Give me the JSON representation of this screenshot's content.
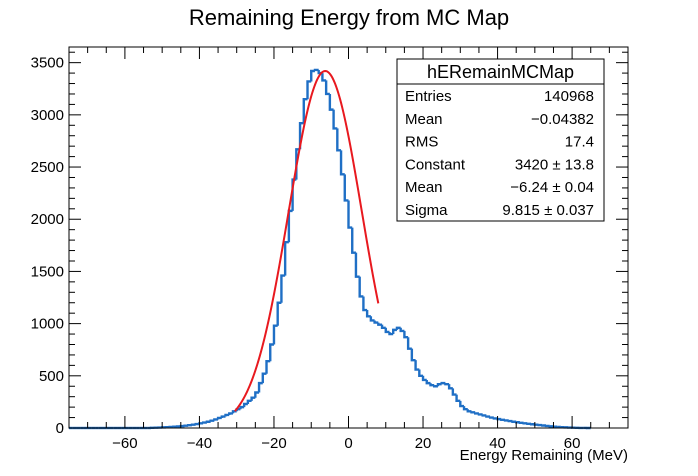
{
  "chart_data": {
    "type": "histogram",
    "title": "Remaining Energy from MC Map",
    "xlabel": "Energy Remaining (MeV)",
    "ylabel": "",
    "xlim": [
      -75,
      75
    ],
    "ylim": [
      0,
      3650
    ],
    "x_ticks": [
      -60,
      -40,
      -20,
      0,
      20,
      40,
      60
    ],
    "x_tick_labels": [
      "−60",
      "−40",
      "−20",
      "0",
      "20",
      "40",
      "60"
    ],
    "y_ticks": [
      0,
      500,
      1000,
      1500,
      2000,
      2500,
      3000,
      3500
    ],
    "y_tick_labels": [
      "0",
      "500",
      "1000",
      "1500",
      "2000",
      "2500",
      "3000",
      "3500"
    ],
    "grid": false,
    "colors": {
      "histogram": "#1f6fc5",
      "fit": "#e8191f",
      "frame": "#000000"
    },
    "histogram": {
      "name": "hERemainMCMap",
      "bin_width": 1,
      "x_start": -75,
      "values": [
        0,
        0,
        0,
        0,
        0,
        0,
        0,
        0,
        0,
        0,
        0,
        0,
        0,
        0,
        0,
        0,
        0,
        0,
        0,
        0,
        0,
        0,
        2,
        3,
        4,
        6,
        8,
        10,
        12,
        15,
        18,
        22,
        27,
        32,
        38,
        45,
        52,
        60,
        70,
        82,
        96,
        110,
        125,
        140,
        160,
        180,
        200,
        230,
        260,
        290,
        340,
        430,
        520,
        640,
        800,
        980,
        1200,
        1460,
        1780,
        2080,
        2380,
        2670,
        2920,
        3150,
        3320,
        3420,
        3430,
        3400,
        3330,
        3200,
        3050,
        2870,
        2660,
        2430,
        2180,
        1920,
        1680,
        1450,
        1260,
        1130,
        1070,
        1030,
        1010,
        990,
        960,
        920,
        900,
        940,
        960,
        930,
        870,
        760,
        650,
        560,
        500,
        460,
        430,
        410,
        400,
        420,
        430,
        420,
        380,
        320,
        260,
        210,
        180,
        160,
        150,
        140,
        130,
        120,
        110,
        100,
        92,
        85,
        78,
        72,
        66,
        60,
        55,
        50,
        45,
        40,
        36,
        32,
        28,
        24,
        20,
        16,
        13,
        10,
        8,
        6,
        4,
        3,
        2,
        1,
        1,
        0
      ]
    },
    "fit": {
      "type": "gaussian",
      "x_range": [
        -30.5,
        8
      ],
      "constant": 3420,
      "mean": -6.24,
      "sigma": 9.815
    },
    "stats_box": {
      "title": "hERemainMCMap",
      "rows": [
        {
          "label": "Entries",
          "value": "140968"
        },
        {
          "label": "Mean",
          "value": "−0.04382"
        },
        {
          "label": "RMS",
          "value": "17.4"
        },
        {
          "label": "Constant",
          "value": "3420 ± 13.8"
        },
        {
          "label": "Mean",
          "value": "−6.24 ± 0.04"
        },
        {
          "label": "Sigma",
          "value": "9.815 ± 0.037"
        }
      ]
    }
  }
}
